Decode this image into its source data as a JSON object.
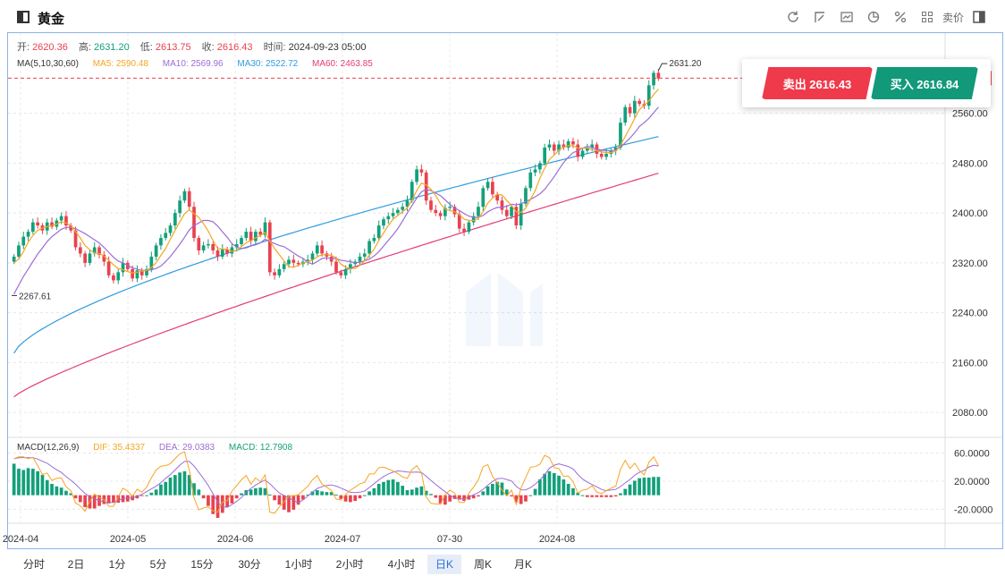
{
  "header": {
    "title": "黄金",
    "price_label": "卖价"
  },
  "toolbar": [
    "refresh-icon",
    "draw-icon",
    "indicator-icon",
    "pie-icon",
    "percent-icon",
    "grid-icon",
    "price-type",
    "layout-icon"
  ],
  "ohlc": {
    "open_label": "开:",
    "open": "2620.36",
    "high_label": "高:",
    "high": "2631.20",
    "low_label": "低:",
    "low": "2613.75",
    "close_label": "收:",
    "close": "2616.43",
    "time_label": "时间:",
    "time": "2024-09-23 05:00"
  },
  "ma": {
    "label": "MA(5,10,30,60)",
    "ma5": "MA5: 2590.48",
    "ma10": "MA10: 2569.96",
    "ma30": "MA30: 2522.72",
    "ma60": "MA60: 2463.85"
  },
  "macd": {
    "label": "MACD(12,26,9)",
    "dif": "DIF: 35.4337",
    "dea": "DEA: 29.0383",
    "macd": "MACD: 12.7908"
  },
  "trade": {
    "sell": "卖出 2616.43",
    "buy": "买入 2616.84"
  },
  "annotations": {
    "high_mark": "2631.20",
    "low_mark": "2267.61",
    "current_price": "2616.43"
  },
  "periods": [
    {
      "label": "分时",
      "active": false
    },
    {
      "label": "2日",
      "active": false
    },
    {
      "label": "1分",
      "active": false
    },
    {
      "label": "5分",
      "active": false
    },
    {
      "label": "15分",
      "active": false
    },
    {
      "label": "30分",
      "active": false
    },
    {
      "label": "1小时",
      "active": false
    },
    {
      "label": "2小时",
      "active": false
    },
    {
      "label": "4小时",
      "active": false
    },
    {
      "label": "日K",
      "active": true
    },
    {
      "label": "周K",
      "active": false
    },
    {
      "label": "月K",
      "active": false
    }
  ],
  "colors": {
    "up": "#13a07a",
    "down": "#e8424f",
    "ma5": "#f5a623",
    "ma10": "#9b6dd6",
    "ma30": "#2f9be0",
    "ma60": "#e23c7a"
  },
  "chart_data": {
    "type": "candlestick",
    "price_axis": {
      "ticks": [
        "2560.00",
        "2480.00",
        "2400.00",
        "2320.00",
        "2240.00",
        "2160.00",
        "2080.00"
      ],
      "ylim": [
        2040,
        2660
      ]
    },
    "macd_axis": {
      "ticks": [
        "60.0000",
        "20.0000",
        "-20.0000"
      ],
      "ylim": [
        -40,
        80
      ]
    },
    "x_labels": [
      "2024-04",
      "2024-05",
      "2024-06",
      "2024-07",
      "07-30",
      "2024-08"
    ],
    "close": [
      2330,
      2348,
      2362,
      2370,
      2385,
      2380,
      2372,
      2385,
      2378,
      2388,
      2395,
      2380,
      2372,
      2345,
      2335,
      2320,
      2335,
      2345,
      2333,
      2322,
      2300,
      2292,
      2305,
      2320,
      2310,
      2295,
      2308,
      2300,
      2310,
      2330,
      2348,
      2360,
      2368,
      2380,
      2400,
      2420,
      2435,
      2410,
      2360,
      2340,
      2348,
      2350,
      2340,
      2330,
      2342,
      2335,
      2345,
      2350,
      2360,
      2370,
      2355,
      2370,
      2365,
      2385,
      2305,
      2300,
      2310,
      2318,
      2325,
      2320,
      2318,
      2322,
      2325,
      2335,
      2348,
      2335,
      2330,
      2322,
      2305,
      2300,
      2310,
      2318,
      2322,
      2330,
      2335,
      2355,
      2360,
      2380,
      2390,
      2395,
      2400,
      2405,
      2410,
      2420,
      2450,
      2470,
      2465,
      2420,
      2405,
      2400,
      2395,
      2408,
      2410,
      2398,
      2375,
      2370,
      2385,
      2395,
      2410,
      2440,
      2450,
      2430,
      2420,
      2405,
      2395,
      2410,
      2380,
      2415,
      2440,
      2465,
      2470,
      2480,
      2505,
      2510,
      2500,
      2510,
      2505,
      2515,
      2510,
      2490,
      2500,
      2505,
      2510,
      2495,
      2490,
      2495,
      2500,
      2505,
      2545,
      2570,
      2560,
      2580,
      2575,
      2572,
      2605,
      2625,
      2616
    ],
    "ma5": [
      2320,
      2326,
      2338,
      2353,
      2364,
      2372,
      2376,
      2378,
      2380,
      2382,
      2386,
      2384,
      2380,
      2370,
      2360,
      2348,
      2341,
      2336,
      2335,
      2331,
      2324,
      2317,
      2311,
      2309,
      2306,
      2304,
      2305,
      2307,
      2308,
      2313,
      2320,
      2332,
      2343,
      2358,
      2372,
      2386,
      2399,
      2405,
      2399,
      2393,
      2383,
      2371,
      2356,
      2343,
      2342,
      2342,
      2338,
      2340,
      2346,
      2352,
      2356,
      2360,
      2364,
      2369,
      2355,
      2343,
      2333,
      2323,
      2314,
      2313,
      2316,
      2320,
      2322,
      2324,
      2330,
      2333,
      2333,
      2332,
      2328,
      2318,
      2313,
      2311,
      2311,
      2316,
      2323,
      2332,
      2342,
      2356,
      2368,
      2380,
      2390,
      2396,
      2402,
      2408,
      2421,
      2436,
      2448,
      2445,
      2438,
      2428,
      2415,
      2406,
      2404,
      2402,
      2397,
      2390,
      2388,
      2388,
      2391,
      2402,
      2416,
      2424,
      2430,
      2429,
      2420,
      2412,
      2402,
      2401,
      2408,
      2422,
      2436,
      2456,
      2472,
      2486,
      2493,
      2501,
      2506,
      2508,
      2508,
      2504,
      2504,
      2504,
      2502,
      2500,
      2498,
      2497,
      2497,
      2499,
      2509,
      2523,
      2537,
      2552,
      2566,
      2573,
      2580,
      2590,
      2599
    ],
    "ma10": [
      2270,
      2284,
      2298,
      2310,
      2322,
      2334,
      2344,
      2354,
      2362,
      2368,
      2374,
      2377,
      2377,
      2375,
      2371,
      2367,
      2362,
      2357,
      2352,
      2345,
      2337,
      2329,
      2323,
      2320,
      2316,
      2312,
      2310,
      2308,
      2308,
      2309,
      2311,
      2315,
      2322,
      2330,
      2340,
      2350,
      2361,
      2373,
      2380,
      2384,
      2388,
      2388,
      2386,
      2379,
      2370,
      2361,
      2351,
      2345,
      2343,
      2344,
      2347,
      2349,
      2352,
      2358,
      2354,
      2351,
      2348,
      2346,
      2341,
      2336,
      2331,
      2327,
      2321,
      2318,
      2322,
      2327,
      2328,
      2327,
      2327,
      2324,
      2323,
      2322,
      2320,
      2321,
      2323,
      2326,
      2331,
      2338,
      2347,
      2356,
      2365,
      2375,
      2387,
      2400,
      2412,
      2424,
      2434,
      2438,
      2436,
      2432,
      2428,
      2421,
      2414,
      2408,
      2404,
      2399,
      2395,
      2393,
      2393,
      2396,
      2402,
      2406,
      2409,
      2409,
      2411,
      2414,
      2413,
      2415,
      2418,
      2422,
      2426,
      2431,
      2438,
      2448,
      2458,
      2470,
      2481,
      2490,
      2497,
      2500,
      2504,
      2507,
      2505,
      2503,
      2501,
      2500,
      2500,
      2501,
      2506,
      2513,
      2520,
      2529,
      2539,
      2545,
      2552,
      2561,
      2570
    ]
  }
}
